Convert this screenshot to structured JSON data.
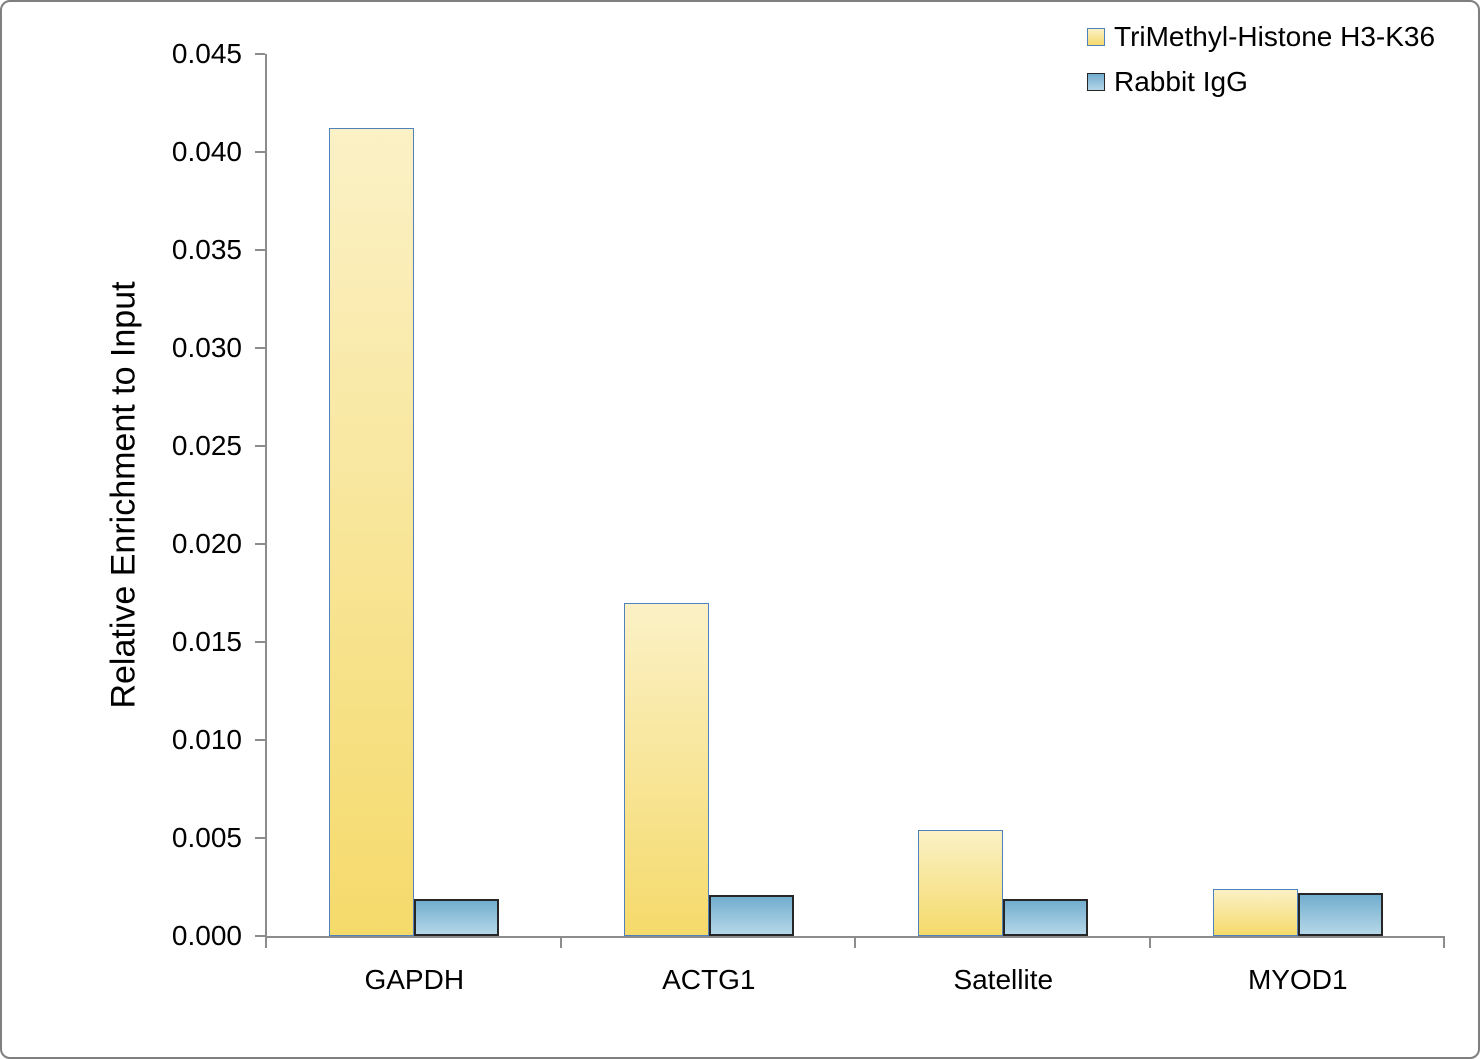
{
  "chart_data": {
    "type": "bar",
    "categories": [
      "GAPDH",
      "ACTG1",
      "Satellite",
      "MYOD1"
    ],
    "series": [
      {
        "name": "TriMethyl-Histone H3-K36",
        "values": [
          0.0412,
          0.017,
          0.0054,
          0.0024
        ],
        "fill_top": "#FBF1C6",
        "fill_bottom": "#F5DA6B",
        "border": "#4F81BD"
      },
      {
        "name": "Rabbit IgG",
        "values": [
          0.0019,
          0.0021,
          0.0019,
          0.0022
        ],
        "fill_top": "#72ADCE",
        "fill_bottom": "#B5D7E8",
        "border": "#262626"
      }
    ],
    "ylabel": "Relative Enrichment to Input",
    "ylim": [
      0,
      0.045
    ],
    "ytick_step": 0.005,
    "ytick_labels": [
      "0.000",
      "0.005",
      "0.010",
      "0.015",
      "0.020",
      "0.025",
      "0.030",
      "0.035",
      "0.040",
      "0.045"
    ],
    "legend_position": "top-right",
    "grid": false
  },
  "colors": {
    "axis": "#8C8C8C",
    "frame_border": "#7F7F7F",
    "text": "#000000",
    "background": "#FFFFFF"
  }
}
